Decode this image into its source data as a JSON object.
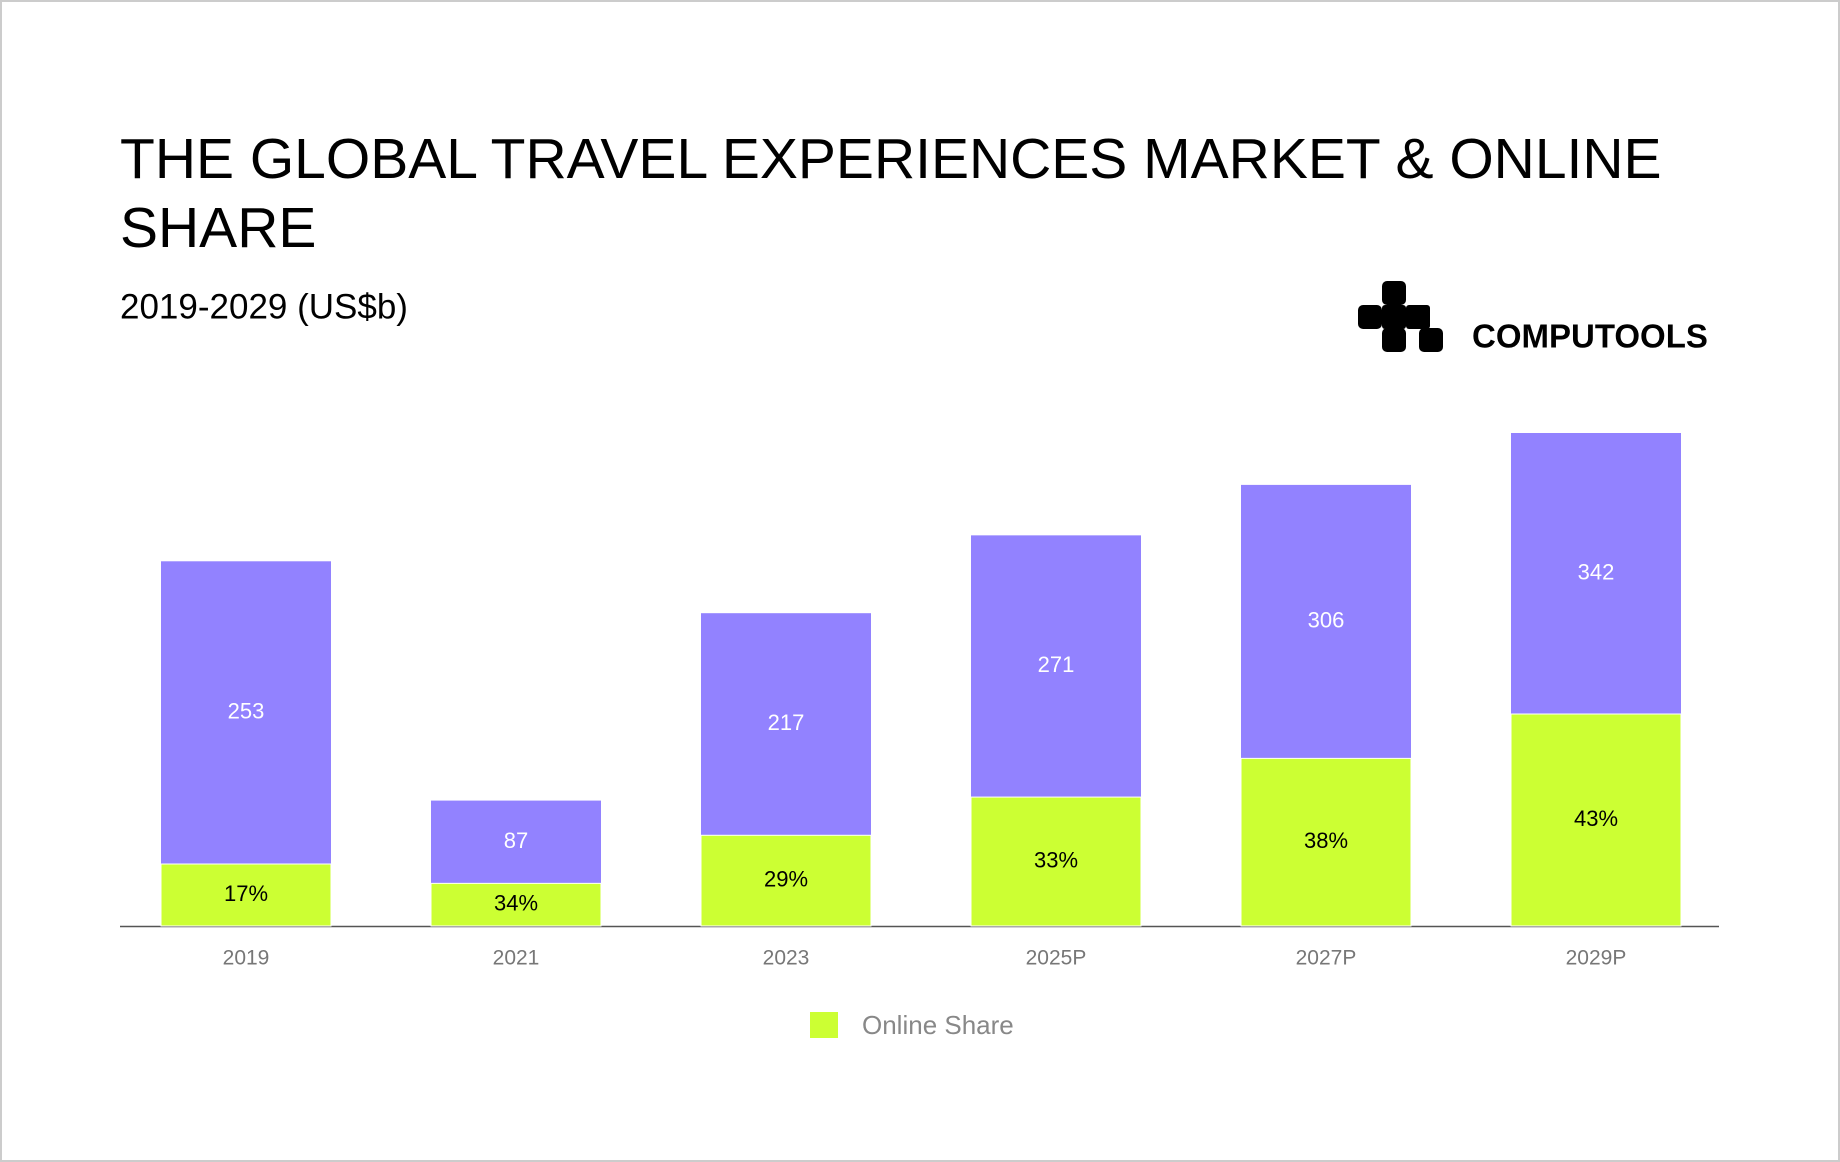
{
  "brand": "COMPUTOOLS",
  "chart_data": {
    "type": "stacked-bar",
    "title": "THE GLOBAL TRAVEL EXPERIENCES MARKET & ONLINE SHARE",
    "subtitle": "2019-2029 (US$b)",
    "categories": [
      "2019",
      "2021",
      "2023",
      "2025P",
      "2027P",
      "2029P"
    ],
    "values": [
      253,
      87,
      217,
      271,
      306,
      342
    ],
    "color": "#9282ff",
    "series": [
      {
        "name": "Online Share",
        "color": "#ccff33",
        "values": [
          17,
          34,
          29,
          33,
          38,
          43
        ],
        "value_labels": [
          "17%",
          "34%",
          "29%",
          "33%",
          "38%",
          "43%"
        ]
      }
    ]
  }
}
